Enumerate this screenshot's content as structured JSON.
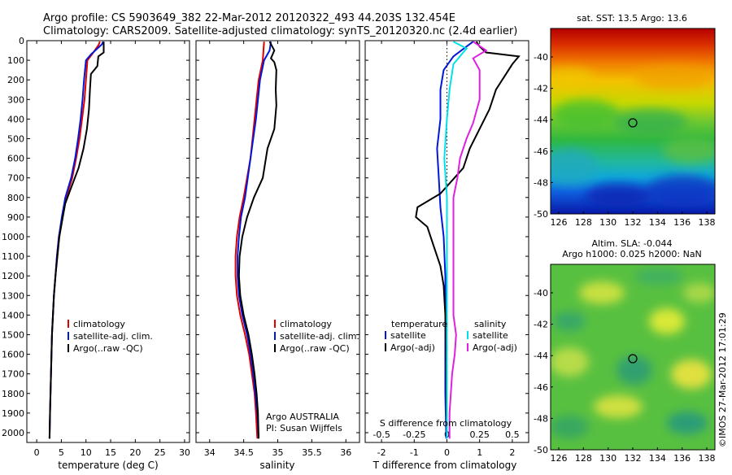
{
  "header": {
    "line1": "Argo profile: CS 5903649_382 22-Mar-2012 20120322_493 44.203S 132.454E",
    "line2": "Climatology: CARS2009. Satellite-adjusted climatology: synTS_20120320.nc (2.4d earlier)"
  },
  "colors": {
    "red": "#e00000",
    "blue": "#0018d8",
    "black": "#000000",
    "cyan": "#00e0e8",
    "magenta": "#e020e0"
  },
  "chart_data": [
    {
      "id": "temperature",
      "type": "line",
      "xlabel": "temperature (deg C)",
      "xlim": [
        -2,
        31
      ],
      "xticks": [
        0,
        5,
        10,
        15,
        20,
        25,
        30
      ],
      "ylim": [
        2050,
        0
      ],
      "yticks": [
        0,
        100,
        200,
        300,
        400,
        500,
        600,
        700,
        800,
        900,
        1000,
        1100,
        1200,
        1300,
        1400,
        1500,
        1600,
        1700,
        1800,
        1900,
        2000
      ],
      "legend": [
        "climatology",
        "satellite-adj. clim.",
        "Argo(..raw -QC)"
      ],
      "series": [
        {
          "name": "climatology",
          "color": "red",
          "points": [
            [
              12.8,
              5
            ],
            [
              12.6,
              20
            ],
            [
              11.5,
              60
            ],
            [
              10.3,
              100
            ],
            [
              10.0,
              200
            ],
            [
              9.7,
              300
            ],
            [
              9.2,
              400
            ],
            [
              8.7,
              500
            ],
            [
              8.0,
              600
            ],
            [
              7.2,
              700
            ],
            [
              6.0,
              800
            ],
            [
              5.2,
              900
            ],
            [
              4.5,
              1000
            ],
            [
              4.1,
              1100
            ],
            [
              3.8,
              1200
            ],
            [
              3.5,
              1300
            ],
            [
              3.3,
              1400
            ],
            [
              3.1,
              1500
            ],
            [
              3.0,
              1600
            ],
            [
              2.9,
              1700
            ],
            [
              2.8,
              1800
            ],
            [
              2.7,
              1900
            ],
            [
              2.6,
              2030
            ]
          ]
        },
        {
          "name": "satellite-adj. clim.",
          "color": "blue",
          "points": [
            [
              13.5,
              5
            ],
            [
              13.2,
              20
            ],
            [
              11.0,
              70
            ],
            [
              10.0,
              100
            ],
            [
              9.6,
              200
            ],
            [
              9.3,
              300
            ],
            [
              8.9,
              400
            ],
            [
              8.4,
              500
            ],
            [
              7.8,
              600
            ],
            [
              7.0,
              700
            ],
            [
              5.8,
              800
            ],
            [
              5.1,
              900
            ],
            [
              4.5,
              1000
            ],
            [
              4.1,
              1100
            ],
            [
              3.8,
              1200
            ],
            [
              3.5,
              1300
            ],
            [
              3.3,
              1400
            ],
            [
              3.1,
              1500
            ],
            [
              3.0,
              1600
            ],
            [
              2.9,
              1700
            ],
            [
              2.8,
              1800
            ],
            [
              2.7,
              1900
            ],
            [
              2.6,
              2030
            ]
          ]
        },
        {
          "name": "Argo(..raw -QC)",
          "color": "black",
          "points": [
            [
              13.6,
              5
            ],
            [
              13.6,
              60
            ],
            [
              12.5,
              80
            ],
            [
              12.3,
              130
            ],
            [
              11.0,
              170
            ],
            [
              10.8,
              250
            ],
            [
              10.6,
              350
            ],
            [
              10.2,
              450
            ],
            [
              9.5,
              550
            ],
            [
              8.5,
              650
            ],
            [
              7.0,
              750
            ],
            [
              5.8,
              830
            ],
            [
              5.3,
              900
            ],
            [
              4.6,
              1000
            ],
            [
              4.2,
              1100
            ],
            [
              3.8,
              1200
            ],
            [
              3.5,
              1300
            ],
            [
              3.3,
              1400
            ],
            [
              3.1,
              1500
            ],
            [
              3.0,
              1600
            ],
            [
              2.9,
              1700
            ],
            [
              2.8,
              1800
            ],
            [
              2.7,
              1900
            ],
            [
              2.6,
              2030
            ]
          ]
        }
      ]
    },
    {
      "id": "salinity",
      "type": "line",
      "xlabel": "salinity",
      "xlim": [
        33.8,
        36.2
      ],
      "xticks": [
        34,
        34.5,
        35,
        35.5,
        36
      ],
      "xtick_labels": [
        "34",
        "34.5",
        "35",
        "35.5",
        "36"
      ],
      "ylim": [
        2050,
        0
      ],
      "legend": [
        "climatology",
        "satellite-adj. clim.",
        "Argo(..raw -QC)"
      ],
      "annotation": [
        "Argo AUSTRALIA",
        "PI: Susan Wijffels"
      ],
      "series": [
        {
          "name": "climatology",
          "color": "red",
          "points": [
            [
              34.8,
              5
            ],
            [
              34.78,
              100
            ],
            [
              34.72,
              200
            ],
            [
              34.66,
              400
            ],
            [
              34.6,
              600
            ],
            [
              34.5,
              800
            ],
            [
              34.44,
              900
            ],
            [
              34.4,
              1000
            ],
            [
              34.38,
              1100
            ],
            [
              34.38,
              1200
            ],
            [
              34.4,
              1300
            ],
            [
              34.45,
              1400
            ],
            [
              34.52,
              1500
            ],
            [
              34.58,
              1600
            ],
            [
              34.62,
              1700
            ],
            [
              34.66,
              1800
            ],
            [
              34.68,
              1900
            ],
            [
              34.7,
              2030
            ]
          ]
        },
        {
          "name": "satellite-adj. clim.",
          "color": "blue",
          "points": [
            [
              34.9,
              5
            ],
            [
              34.88,
              50
            ],
            [
              34.8,
              100
            ],
            [
              34.74,
              200
            ],
            [
              34.68,
              400
            ],
            [
              34.6,
              600
            ],
            [
              34.52,
              800
            ],
            [
              34.46,
              900
            ],
            [
              34.43,
              1000
            ],
            [
              34.41,
              1100
            ],
            [
              34.41,
              1200
            ],
            [
              34.43,
              1300
            ],
            [
              34.48,
              1400
            ],
            [
              34.55,
              1500
            ],
            [
              34.6,
              1600
            ],
            [
              34.64,
              1700
            ],
            [
              34.67,
              1800
            ],
            [
              34.7,
              1900
            ],
            [
              34.72,
              2030
            ]
          ]
        },
        {
          "name": "Argo(..raw -QC)",
          "color": "black",
          "points": [
            [
              34.88,
              5
            ],
            [
              34.95,
              50
            ],
            [
              34.9,
              90
            ],
            [
              34.95,
              110
            ],
            [
              34.98,
              150
            ],
            [
              34.97,
              250
            ],
            [
              34.98,
              330
            ],
            [
              34.95,
              450
            ],
            [
              34.85,
              550
            ],
            [
              34.78,
              700
            ],
            [
              34.65,
              800
            ],
            [
              34.55,
              900
            ],
            [
              34.48,
              1000
            ],
            [
              34.44,
              1100
            ],
            [
              34.43,
              1200
            ],
            [
              34.45,
              1300
            ],
            [
              34.5,
              1400
            ],
            [
              34.57,
              1500
            ],
            [
              34.62,
              1600
            ],
            [
              34.66,
              1700
            ],
            [
              34.69,
              1800
            ],
            [
              34.71,
              1900
            ],
            [
              34.72,
              2030
            ]
          ]
        }
      ]
    },
    {
      "id": "difference",
      "type": "line",
      "xlabel": "T difference from climatology",
      "xlabel_top": "S difference from climatology",
      "xlim": [
        -2.5,
        2.5
      ],
      "xticks": [
        -2,
        -1,
        0,
        1,
        2
      ],
      "sticks": [
        -0.5,
        -0.25,
        0,
        0.25,
        0.5
      ],
      "stick_labels": [
        "-0.5",
        "-0.25",
        "0",
        "0.25",
        "0.5"
      ],
      "ylim": [
        2050,
        0
      ],
      "legend_temperature_heading": "temperature",
      "legend_salinity_heading": "salinity",
      "legend_temperature": [
        "satellite",
        "Argo(-adj)"
      ],
      "legend_salinity": [
        "satellite",
        "Argo(-adj)"
      ],
      "series": [
        {
          "name": "T satellite",
          "color": "blue",
          "points": [
            [
              0.8,
              5
            ],
            [
              0.6,
              30
            ],
            [
              0.2,
              80
            ],
            [
              -0.1,
              150
            ],
            [
              -0.2,
              250
            ],
            [
              -0.2,
              400
            ],
            [
              -0.3,
              550
            ],
            [
              -0.25,
              700
            ],
            [
              -0.2,
              850
            ],
            [
              -0.1,
              1000
            ],
            [
              -0.05,
              1200
            ],
            [
              -0.05,
              1400
            ],
            [
              -0.05,
              1600
            ],
            [
              -0.05,
              1800
            ],
            [
              -0.02,
              2030
            ]
          ]
        },
        {
          "name": "T Argo(-adj)",
          "color": "black",
          "points": [
            [
              0.9,
              5
            ],
            [
              1.0,
              30
            ],
            [
              1.2,
              60
            ],
            [
              2.2,
              80
            ],
            [
              2.0,
              120
            ],
            [
              1.5,
              250
            ],
            [
              1.3,
              350
            ],
            [
              1.0,
              450
            ],
            [
              0.7,
              550
            ],
            [
              0.5,
              650
            ],
            [
              -0.2,
              780
            ],
            [
              -0.9,
              850
            ],
            [
              -0.95,
              900
            ],
            [
              -0.6,
              950
            ],
            [
              -0.4,
              1050
            ],
            [
              -0.2,
              1150
            ],
            [
              -0.1,
              1250
            ],
            [
              -0.05,
              1400
            ],
            [
              -0.03,
              1600
            ],
            [
              -0.02,
              1800
            ],
            [
              0.0,
              2030
            ]
          ]
        },
        {
          "name": "S satellite",
          "color": "cyan",
          "points": [
            [
              0.05,
              5
            ],
            [
              0.15,
              40
            ],
            [
              0.05,
              120
            ],
            [
              0.02,
              250
            ],
            [
              0.0,
              400
            ],
            [
              -0.02,
              600
            ],
            [
              0.0,
              800
            ],
            [
              0.0,
              1000
            ],
            [
              0.0,
              1200
            ],
            [
              0.0,
              1400
            ],
            [
              0.0,
              1600
            ],
            [
              0.0,
              1800
            ],
            [
              0.0,
              2030
            ]
          ]
        },
        {
          "name": "S Argo(-adj)",
          "color": "magenta",
          "points": [
            [
              0.2,
              5
            ],
            [
              0.3,
              50
            ],
            [
              0.2,
              90
            ],
            [
              0.25,
              150
            ],
            [
              0.25,
              300
            ],
            [
              0.2,
              420
            ],
            [
              0.15,
              500
            ],
            [
              0.1,
              600
            ],
            [
              0.08,
              700
            ],
            [
              0.05,
              800
            ],
            [
              0.05,
              900
            ],
            [
              0.05,
              1000
            ],
            [
              0.05,
              1100
            ],
            [
              0.05,
              1200
            ],
            [
              0.05,
              1300
            ],
            [
              0.05,
              1400
            ],
            [
              0.07,
              1500
            ],
            [
              0.06,
              1600
            ],
            [
              0.04,
              1700
            ],
            [
              0.03,
              1800
            ],
            [
              0.02,
              1900
            ],
            [
              0.02,
              2030
            ]
          ]
        }
      ]
    },
    {
      "id": "sst_map",
      "type": "heatmap",
      "title": "sat. SST: 13.5  Argo: 13.6",
      "xticks": [
        "126",
        "128",
        "130",
        "132",
        "134",
        "136",
        "138"
      ],
      "yticks": [
        "-40",
        "-42",
        "-44",
        "-46",
        "-48",
        "-50"
      ],
      "argo_position": [
        132.454,
        -44.203
      ]
    },
    {
      "id": "sla_map",
      "type": "heatmap",
      "title_line1": "Altim. SLA: -0.044",
      "title_line2": "Argo h1000: 0.025  h2000: NaN",
      "xticks": [
        "126",
        "128",
        "130",
        "132",
        "134",
        "136",
        "138"
      ],
      "yticks": [
        "-40",
        "-42",
        "-44",
        "-46",
        "-48",
        "-50"
      ],
      "argo_position": [
        132.454,
        -44.203
      ]
    }
  ],
  "credit": "©IMOS 27-Mar-2012 17:01:29"
}
